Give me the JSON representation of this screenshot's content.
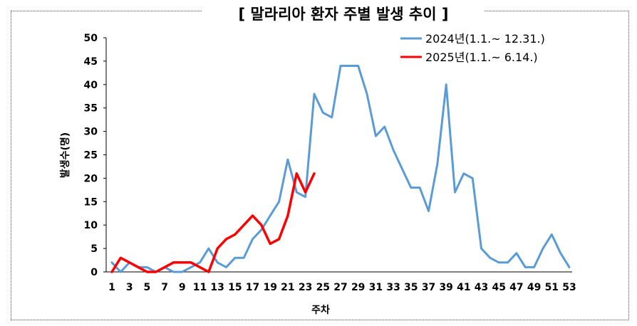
{
  "chart_data": {
    "type": "line",
    "title": "[ 말라리아 환자 주별 발생 추이 ]",
    "xlabel": "주차",
    "ylabel": "발생수(명)",
    "ylim": [
      0,
      50
    ],
    "yticks": [
      0,
      5,
      10,
      15,
      20,
      25,
      30,
      35,
      40,
      45,
      50
    ],
    "xlim": [
      1,
      53
    ],
    "xticks": [
      1,
      3,
      5,
      7,
      9,
      11,
      13,
      15,
      17,
      19,
      21,
      23,
      25,
      27,
      29,
      31,
      33,
      35,
      37,
      39,
      41,
      43,
      45,
      47,
      49,
      51,
      53
    ],
    "grid": false,
    "legend_position": "top-right",
    "series": [
      {
        "name": "2024년(1.1.~ 12.31.)",
        "color": "#5B9BD5",
        "x": [
          1,
          2,
          3,
          4,
          5,
          6,
          7,
          8,
          9,
          10,
          11,
          12,
          13,
          14,
          15,
          16,
          17,
          18,
          19,
          20,
          21,
          22,
          23,
          24,
          25,
          26,
          27,
          28,
          29,
          30,
          31,
          32,
          33,
          34,
          35,
          36,
          37,
          38,
          39,
          40,
          41,
          42,
          43,
          44,
          45,
          46,
          47,
          48,
          49,
          50,
          51,
          52,
          53
        ],
        "values": [
          2,
          0,
          2,
          1,
          1,
          0,
          1,
          0,
          0,
          1,
          2,
          5,
          2,
          1,
          3,
          3,
          7,
          9,
          12,
          15,
          24,
          17,
          16,
          38,
          34,
          33,
          44,
          44,
          44,
          38,
          29,
          31,
          26,
          22,
          18,
          18,
          13,
          23,
          40,
          17,
          21,
          20,
          5,
          3,
          2,
          2,
          4,
          1,
          1,
          5,
          8,
          4,
          1
        ]
      },
      {
        "name": "2025년(1.1.~ 6.14.)",
        "color": "#FF0000",
        "x": [
          1,
          2,
          3,
          4,
          5,
          6,
          7,
          8,
          9,
          10,
          11,
          12,
          13,
          14,
          15,
          16,
          17,
          18,
          19,
          20,
          21,
          22,
          23,
          24
        ],
        "values": [
          0,
          3,
          2,
          1,
          0,
          0,
          1,
          2,
          2,
          2,
          1,
          0,
          5,
          7,
          8,
          10,
          12,
          10,
          6,
          7,
          12,
          21,
          17,
          21
        ]
      }
    ]
  }
}
